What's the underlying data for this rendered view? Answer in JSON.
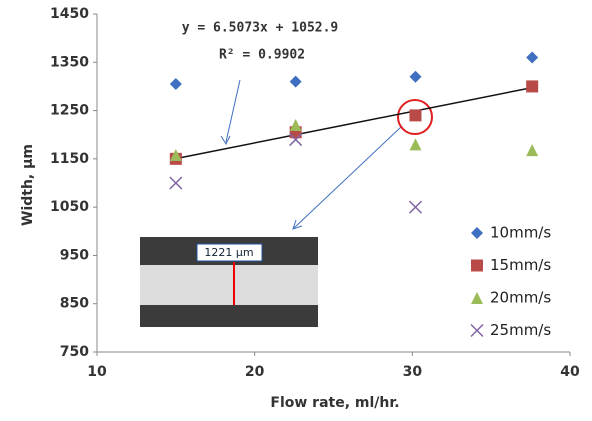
{
  "chart_data": {
    "type": "scatter",
    "xlabel": "Flow rate, ml/hr.",
    "ylabel": "Width, µm",
    "xlim": [
      10,
      40
    ],
    "xticks": [
      10,
      20,
      30,
      40
    ],
    "ylim": [
      750,
      1450
    ],
    "yticks": [
      750,
      850,
      950,
      1050,
      1150,
      1250,
      1350,
      1450
    ],
    "series": [
      {
        "name": "10mm/s",
        "color": "#3f6fc0",
        "marker": "diamond",
        "x": [
          15,
          22.6,
          30.2,
          37.6
        ],
        "values": [
          1305,
          1310,
          1320,
          1360
        ]
      },
      {
        "name": "15mm/s",
        "color": "#b84a48",
        "marker": "square",
        "x": [
          15,
          22.6,
          30.2,
          37.6
        ],
        "values": [
          1150,
          1205,
          1240,
          1300
        ]
      },
      {
        "name": "20mm/s",
        "color": "#9bbb59",
        "marker": "triangle",
        "x": [
          15,
          22.6,
          30.2,
          37.6
        ],
        "values": [
          1158,
          1220,
          1180,
          1168
        ]
      },
      {
        "name": "25mm/s",
        "color": "#8064a2",
        "marker": "cross",
        "x": [
          15,
          22.6,
          30.2
        ],
        "values": [
          1100,
          1190,
          1050
        ]
      }
    ],
    "trendline": {
      "equation": "y = 6.5073x + 1052.9",
      "r2": "R² = 0.9902",
      "slope": 6.5073,
      "intercept": 1052.9,
      "series": 1
    },
    "inset_label": "1221 µm"
  }
}
